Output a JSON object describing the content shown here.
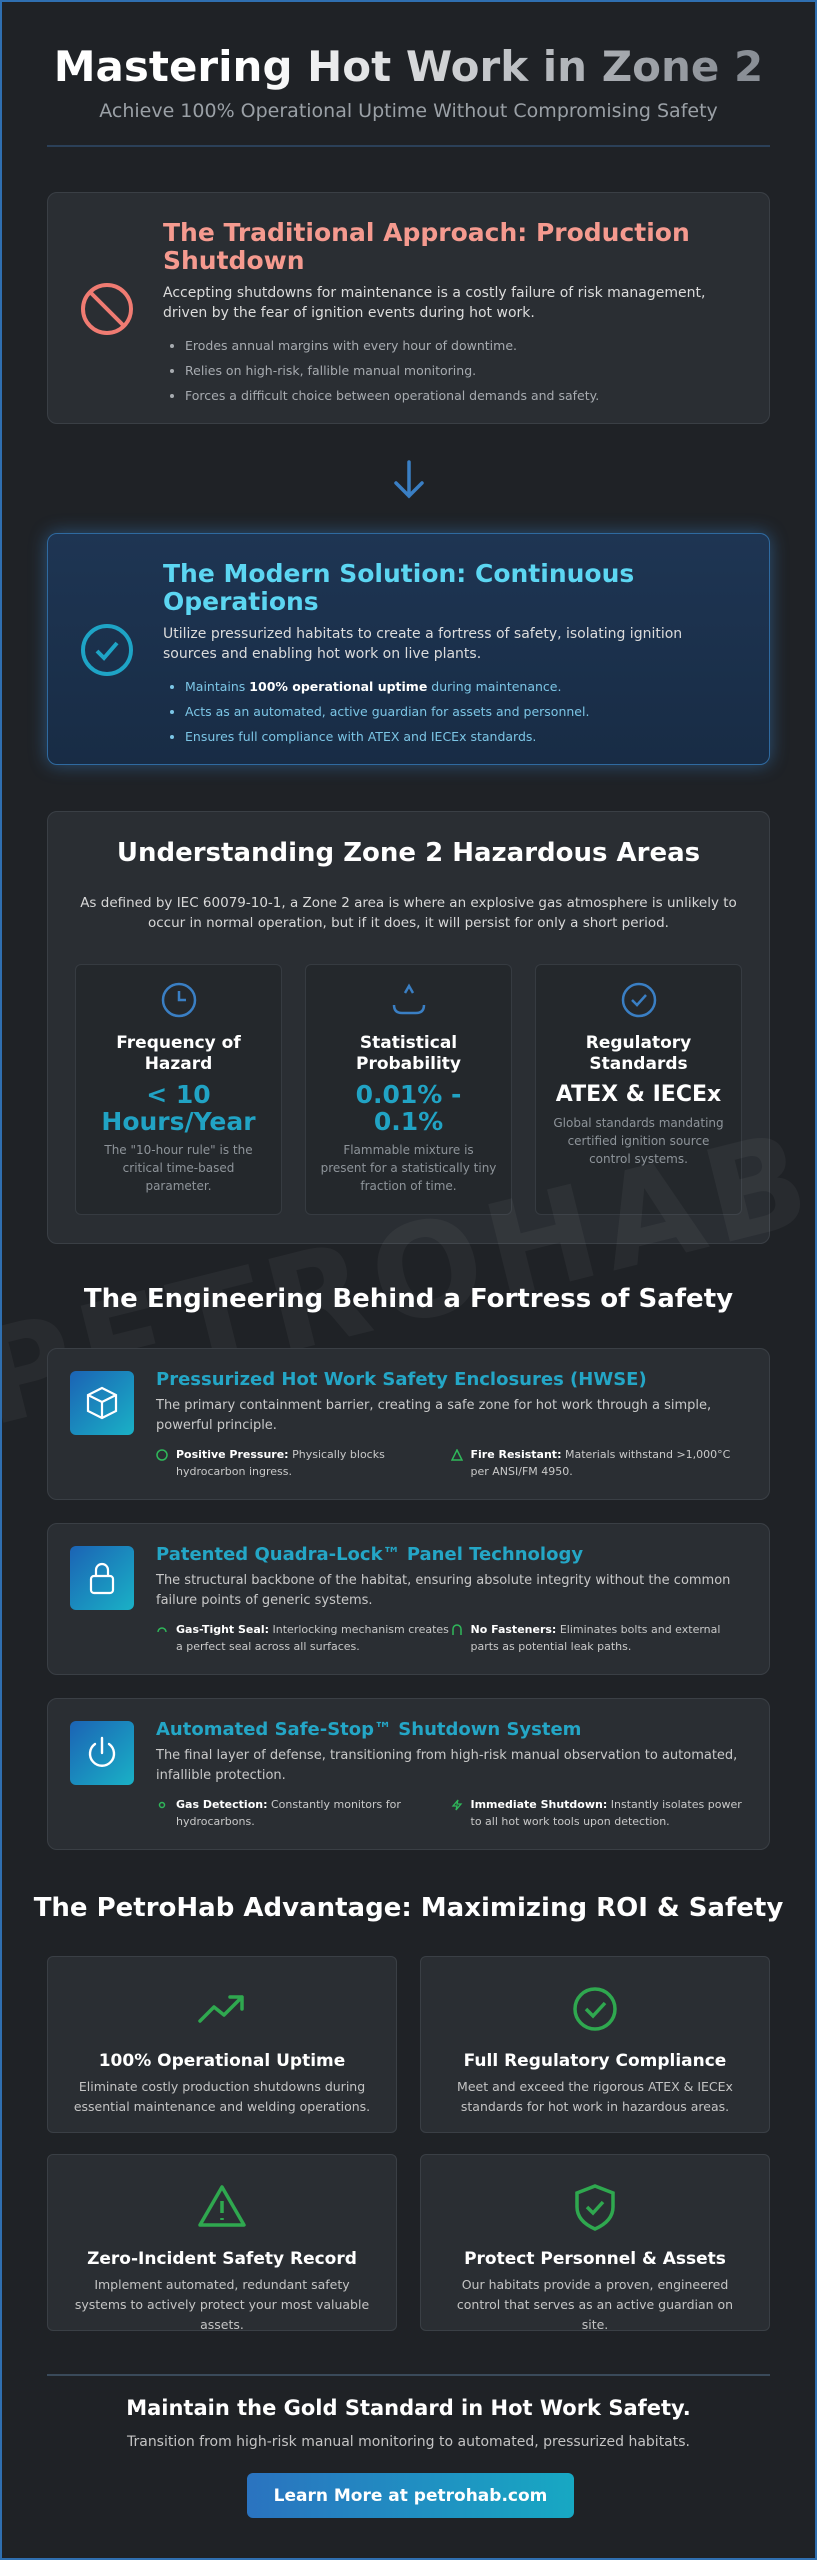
{
  "header": {
    "title": "Mastering Hot Work in Zone 2",
    "subtitle": "Achieve 100% Operational Uptime Without Compromising Safety"
  },
  "traditional": {
    "title": "The Traditional Approach: Production Shutdown",
    "text": "Accepting shutdowns for maintenance is a costly failure of risk management, driven by the fear of ignition events during hot work.",
    "bullets": [
      "Erodes annual margins with every hour of downtime.",
      "Relies on high-risk, fallible manual monitoring.",
      "Forces a difficult choice between operational demands and safety."
    ]
  },
  "modern": {
    "title": "The Modern Solution: Continuous Operations",
    "text": "Utilize pressurized habitats to create a fortress of safety, isolating ignition sources and enabling hot work on live plants.",
    "bullets": [
      {
        "before": "Maintains",
        "bold": "100% operational uptime",
        "after": "during maintenance."
      },
      "Acts as an automated, active guardian for assets and personnel.",
      "Ensures full compliance with ATEX and IECEx standards."
    ]
  },
  "zone": {
    "title": "Understanding Zone 2 Hazardous Areas",
    "text": "As defined by IEC 60079-10-1, a Zone 2 area is where an explosive gas atmosphere is unlikely to occur in normal operation, but if it does, it will persist for only a short period.",
    "cards": [
      {
        "title": "Frequency of Hazard",
        "value": "< 10 Hours/Year",
        "text": "The \"10-hour rule\" is the critical time-based parameter."
      },
      {
        "title": "Statistical Probability",
        "value": "0.01% - 0.1%",
        "text": "Flammable mixture is present for a statistically tiny fraction of time."
      },
      {
        "title": "Regulatory Standards",
        "value": "ATEX & IECEx",
        "text": "Global standards mandating certified ignition source control systems."
      }
    ],
    "watermark": "PETROHAB.COM"
  },
  "engineering": {
    "title": "The Engineering Behind a Fortress of Safety",
    "features": [
      {
        "title": "Pressurized Hot Work Safety Enclosures (HWSE)",
        "text": "The primary containment barrier, creating a safe zone for hot work through a simple, powerful principle.",
        "points": [
          {
            "label": "Positive Pressure:",
            "text": "Physically blocks hydrocarbon ingress."
          },
          {
            "label": "Fire Resistant:",
            "text": "Materials withstand >1,000°C per ANSI/FM 4950."
          }
        ]
      },
      {
        "title": "Patented Quadra-Lock™ Panel Technology",
        "text": "The structural backbone of the habitat, ensuring absolute integrity without the common failure points of generic systems.",
        "points": [
          {
            "label": "Gas-Tight Seal:",
            "text": "Interlocking mechanism creates a perfect seal across all surfaces."
          },
          {
            "label": "No Fasteners:",
            "text": "Eliminates bolts and external parts as potential leak paths."
          }
        ]
      },
      {
        "title": "Automated Safe-Stop™ Shutdown System",
        "text": "The final layer of defense, transitioning from high-risk manual observation to automated, infallible protection.",
        "points": [
          {
            "label": "Gas Detection:",
            "text": "Constantly monitors for hydrocarbons."
          },
          {
            "label": "Immediate Shutdown:",
            "text": "Instantly isolates power to all hot work tools upon detection."
          }
        ]
      }
    ]
  },
  "advantage": {
    "title": "The PetroHab Advantage: Maximizing ROI & Safety",
    "cards": [
      {
        "title": "100% Operational Uptime",
        "text": "Eliminate costly production shutdowns during essential maintenance and welding operations."
      },
      {
        "title": "Full Regulatory Compliance",
        "text": "Meet and exceed the rigorous ATEX & IECEx standards for hot work in hazardous areas."
      },
      {
        "title": "Zero-Incident Safety Record",
        "text": "Implement automated, redundant safety systems to actively protect your most valuable assets."
      },
      {
        "title": "Protect Personnel & Assets",
        "text": "Our habitats provide a proven, engineered control that serves as an active guardian on site."
      }
    ]
  },
  "cta": {
    "title": "Maintain the Gold Standard in Hot Work Safety.",
    "text": "Transition from high-risk manual monitoring to automated, pressurized habitats.",
    "button": "Learn More at petrohab.com"
  }
}
